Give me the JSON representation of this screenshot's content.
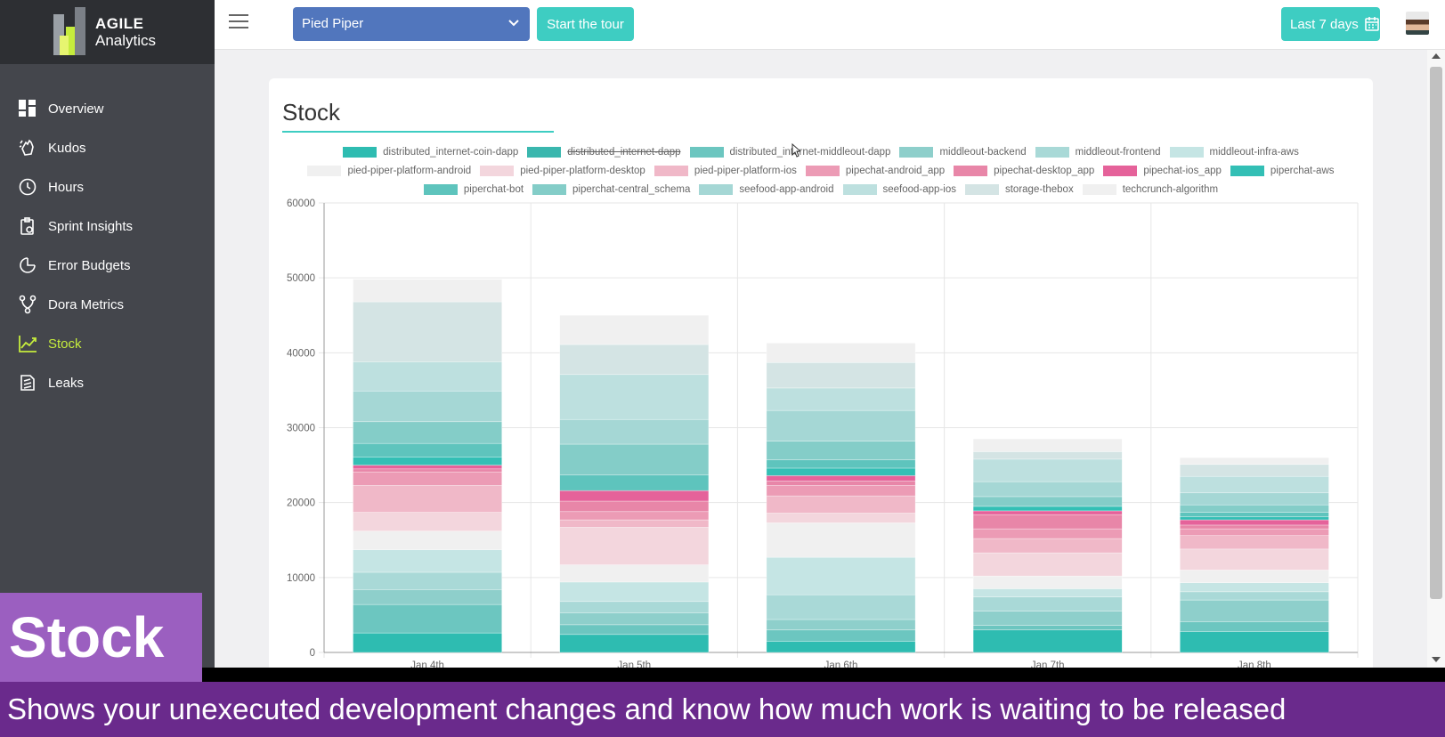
{
  "logo": {
    "line1": "AGILE",
    "line2": "Analytics"
  },
  "nav": [
    {
      "label": "Overview",
      "icon": "grid-icon"
    },
    {
      "label": "Kudos",
      "icon": "clap-icon"
    },
    {
      "label": "Hours",
      "icon": "clock-icon"
    },
    {
      "label": "Sprint Insights",
      "icon": "clipboard-icon"
    },
    {
      "label": "Error Budgets",
      "icon": "gauge-icon"
    },
    {
      "label": "Dora Metrics",
      "icon": "branch-icon"
    },
    {
      "label": "Stock",
      "icon": "trend-icon",
      "active": true
    },
    {
      "label": "Leaks",
      "icon": "leak-icon"
    }
  ],
  "topbar": {
    "org": "Pied Piper",
    "tour": "Start the tour",
    "range": "Last 7 days"
  },
  "card": {
    "title": "Stock"
  },
  "overlay": {
    "badge": "Stock",
    "caption": "Shows your unexecuted development changes and know how much work is waiting to be released"
  },
  "chart_data": {
    "type": "bar",
    "stacked": true,
    "title": "Stock",
    "categories": [
      "Jan 4th",
      "Jan 5th",
      "Jan 6th",
      "Jan 7th",
      "Jan 8th"
    ],
    "ylim": [
      0,
      60000
    ],
    "yticks": [
      0,
      10000,
      20000,
      30000,
      40000,
      50000,
      60000
    ],
    "grid": true,
    "legend_position": "top",
    "series": [
      {
        "name": "distributed_internet-coin-dapp",
        "color": "#2ebcb1",
        "values": [
          2600,
          2400,
          1500,
          3000,
          2800
        ]
      },
      {
        "name": "distributed_internet-dapp",
        "color": "#3ab7ae",
        "hidden": true,
        "values": [
          0,
          0,
          0,
          0,
          0
        ]
      },
      {
        "name": "distributed_internet-middleout-dapp",
        "color": "#6cc6c0",
        "values": [
          3800,
          1300,
          1500,
          600,
          1300
        ]
      },
      {
        "name": "middleout-backend",
        "color": "#8ecfcb",
        "values": [
          2000,
          1600,
          1400,
          1900,
          2900
        ]
      },
      {
        "name": "middleout-frontend",
        "color": "#a9d9d7",
        "values": [
          2300,
          1500,
          3300,
          1900,
          1100
        ]
      },
      {
        "name": "middleout-infra-aws",
        "color": "#c5e5e4",
        "values": [
          3000,
          2600,
          5000,
          1100,
          1200
        ]
      },
      {
        "name": "pied-piper-platform-android",
        "color": "#f0f0f0",
        "values": [
          2500,
          2300,
          4600,
          1700,
          1700
        ]
      },
      {
        "name": "pied-piper-platform-desktop",
        "color": "#f3d6dd",
        "values": [
          2500,
          5000,
          1300,
          3100,
          2800
        ]
      },
      {
        "name": "pied-piper-platform-ios",
        "color": "#f0b8c8",
        "values": [
          3600,
          1000,
          2300,
          1900,
          1800
        ]
      },
      {
        "name": "pipechat-android_app",
        "color": "#ec9bb5",
        "values": [
          1800,
          1100,
          1400,
          1300,
          900
        ]
      },
      {
        "name": "pipechat-desktop_app",
        "color": "#e886a8",
        "values": [
          400,
          1400,
          600,
          1900,
          500
        ]
      },
      {
        "name": "pipechat-ios_app",
        "color": "#e5629a",
        "values": [
          500,
          1400,
          700,
          500,
          700
        ]
      },
      {
        "name": "piperchat-aws",
        "color": "#33bfb5",
        "values": [
          1100,
          0,
          1000,
          600,
          400
        ]
      },
      {
        "name": "piperchat-bot",
        "color": "#5ec4bd",
        "values": [
          1800,
          2100,
          1100,
          0,
          600
        ]
      },
      {
        "name": "piperchat-central_schema",
        "color": "#84cdc8",
        "values": [
          2900,
          4100,
          2500,
          1300,
          1000
        ]
      },
      {
        "name": "seefood-app-android",
        "color": "#a5d7d5",
        "values": [
          4100,
          3300,
          4100,
          2000,
          1600
        ]
      },
      {
        "name": "seefood-app-ios",
        "color": "#bde0df",
        "values": [
          3900,
          6000,
          3000,
          3000,
          2200
        ]
      },
      {
        "name": "storage-thebox",
        "color": "#d4e4e4",
        "values": [
          8000,
          4000,
          3400,
          1000,
          1600
        ]
      },
      {
        "name": "techcrunch-algorithm",
        "color": "#f0f0f0",
        "values": [
          3000,
          3900,
          2600,
          1700,
          900
        ]
      }
    ]
  }
}
